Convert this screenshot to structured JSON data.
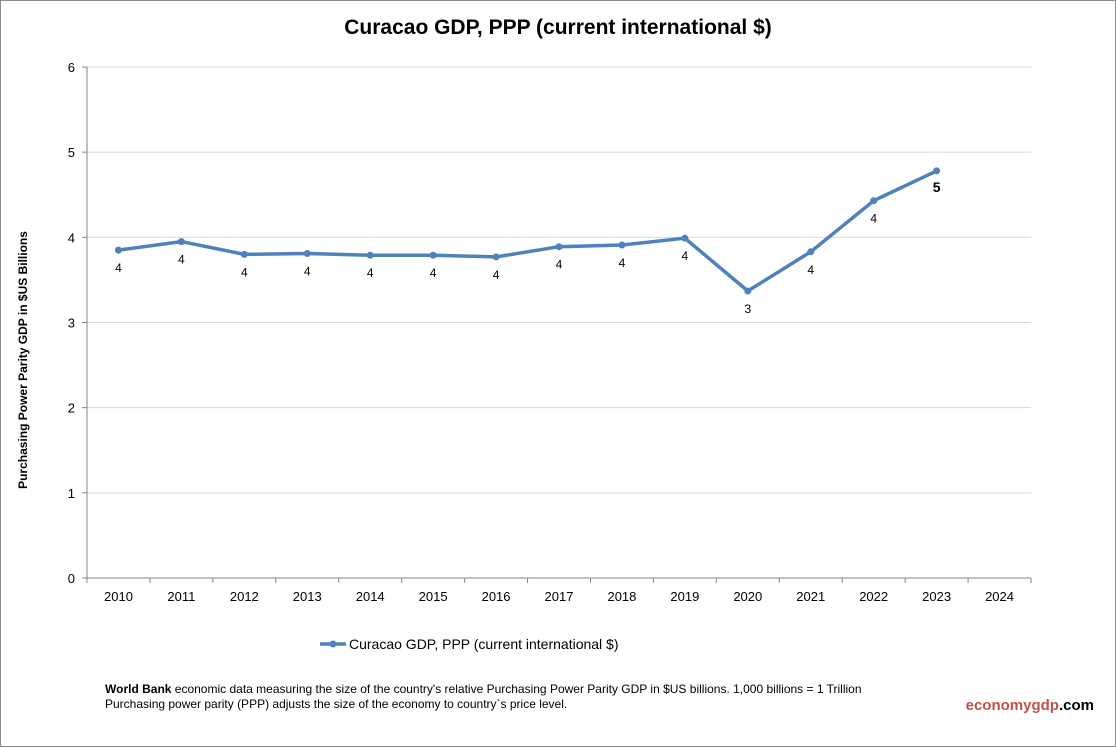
{
  "chart_data": {
    "type": "line",
    "title": "Curacao GDP, PPP (current international $)",
    "xlabel": "",
    "ylabel": "Purchasing Power Parity GDP in $US Billions",
    "categories": [
      "2010",
      "2011",
      "2012",
      "2013",
      "2014",
      "2015",
      "2016",
      "2017",
      "2018",
      "2019",
      "2020",
      "2021",
      "2022",
      "2023",
      "2024"
    ],
    "series": [
      {
        "name": "Curacao GDP, PPP (current international $)",
        "values": [
          3.85,
          3.95,
          3.8,
          3.81,
          3.79,
          3.79,
          3.77,
          3.89,
          3.91,
          3.99,
          3.37,
          3.83,
          4.43,
          4.78,
          null
        ],
        "labels": [
          "4",
          "4",
          "4",
          "4",
          "4",
          "4",
          "4",
          "4",
          "4",
          "4",
          "3",
          "4",
          "4",
          "5",
          ""
        ]
      }
    ],
    "ylim": [
      0,
      6
    ],
    "yticks": [
      "0",
      "1",
      "2",
      "3",
      "4",
      "5",
      "6"
    ],
    "grid": true,
    "legend": "bottom",
    "color": "#4f81bd"
  },
  "footer": {
    "source_bold": "World Bank",
    "line1": " economic data  measuring the size of the country's relative  Purchasing Power Parity GDP in $US billions. 1,000 billions = 1 Trillion",
    "line2": "Purchasing power parity (PPP) adjusts the size of the economy to country`s price level."
  },
  "brand": {
    "part1": "economy",
    "part2": "gdp",
    "part3": ".com",
    "color1": "#c0504d",
    "color2": "#000000"
  }
}
